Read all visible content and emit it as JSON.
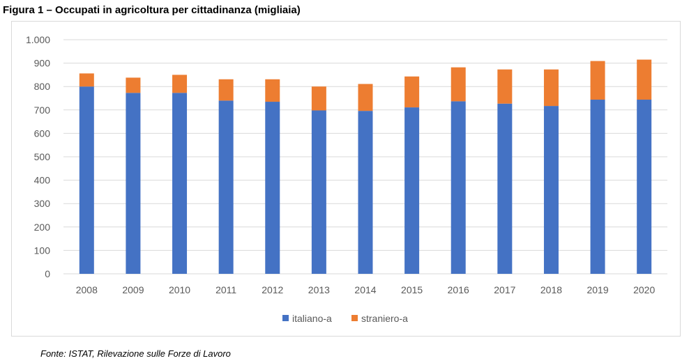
{
  "title": "Figura 1 – Occupati in agricoltura per cittadinanza (migliaia)",
  "source": "Fonte: ISTAT, Rilevazione sulle Forze di Lavoro",
  "chart_data": {
    "type": "bar",
    "stacked": true,
    "categories": [
      "2008",
      "2009",
      "2010",
      "2011",
      "2012",
      "2013",
      "2014",
      "2015",
      "2016",
      "2017",
      "2018",
      "2019",
      "2020"
    ],
    "series": [
      {
        "name": "italiano-a",
        "color": "#4472c4",
        "values": [
          800,
          773,
          773,
          740,
          735,
          698,
          696,
          711,
          737,
          727,
          717,
          744,
          744
        ]
      },
      {
        "name": "straniero-a",
        "color": "#ed7d31",
        "values": [
          56,
          65,
          77,
          91,
          96,
          102,
          115,
          132,
          145,
          146,
          156,
          165,
          171
        ]
      }
    ],
    "ylim": [
      0,
      1000
    ],
    "yticks": [
      0,
      100,
      200,
      300,
      400,
      500,
      600,
      700,
      800,
      900,
      1000
    ],
    "ytick_labels": [
      "0",
      "100",
      "200",
      "300",
      "400",
      "500",
      "600",
      "700",
      "800",
      "900",
      "1.000"
    ],
    "grid": true,
    "legend": "bottom-center"
  }
}
